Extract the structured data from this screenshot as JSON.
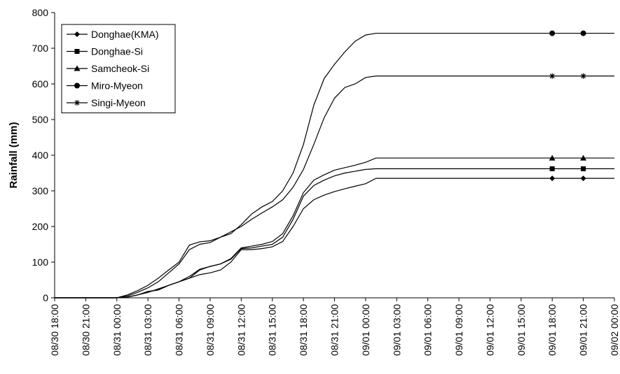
{
  "chart_data": {
    "type": "line",
    "y_label": "Rainfall (mm)",
    "x": [
      "08/30 18:00",
      "08/30 19:00",
      "08/30 20:00",
      "08/30 21:00",
      "08/30 22:00",
      "08/30 23:00",
      "08/31 00:00",
      "08/31 01:00",
      "08/31 02:00",
      "08/31 03:00",
      "08/31 04:00",
      "08/31 05:00",
      "08/31 06:00",
      "08/31 07:00",
      "08/31 08:00",
      "08/31 09:00",
      "08/31 10:00",
      "08/31 11:00",
      "08/31 12:00",
      "08/31 13:00",
      "08/31 14:00",
      "08/31 15:00",
      "08/31 16:00",
      "08/31 17:00",
      "08/31 18:00",
      "08/31 19:00",
      "08/31 20:00",
      "08/31 21:00",
      "08/31 22:00",
      "08/31 23:00",
      "09/01 00:00",
      "09/01 01:00",
      "09/01 02:00",
      "09/01 18:00",
      "09/01 21:00",
      "09/02 00:00"
    ],
    "series": [
      {
        "name": "Donghae(KMA)",
        "marker": "diamond",
        "color": "#000000",
        "values": [
          0,
          0,
          0,
          0,
          0,
          0,
          0,
          2,
          8,
          18,
          22,
          35,
          45,
          55,
          65,
          70,
          78,
          100,
          135,
          135,
          138,
          143,
          158,
          200,
          250,
          275,
          288,
          298,
          306,
          313,
          320,
          335,
          335,
          335,
          335,
          335
        ]
      },
      {
        "name": "Donghae-Si",
        "marker": "square",
        "color": "#000000",
        "values": [
          0,
          0,
          0,
          0,
          0,
          0,
          0,
          2,
          8,
          17,
          22,
          35,
          45,
          55,
          78,
          88,
          95,
          108,
          138,
          140,
          145,
          150,
          170,
          220,
          285,
          315,
          330,
          342,
          350,
          355,
          360,
          362,
          362,
          362,
          362,
          362
        ]
      },
      {
        "name": "Samcheok-Si",
        "marker": "triangle",
        "color": "#000000",
        "values": [
          0,
          0,
          0,
          0,
          0,
          0,
          0,
          2,
          8,
          15,
          25,
          35,
          45,
          60,
          80,
          88,
          95,
          110,
          140,
          145,
          150,
          158,
          180,
          230,
          295,
          330,
          345,
          358,
          365,
          372,
          380,
          392,
          392,
          392,
          392,
          392
        ]
      },
      {
        "name": "Miro-Myeon",
        "marker": "circle",
        "color": "#000000",
        "values": [
          0,
          0,
          0,
          0,
          0,
          0,
          0,
          8,
          20,
          35,
          55,
          78,
          100,
          148,
          157,
          160,
          170,
          180,
          205,
          235,
          255,
          270,
          300,
          350,
          430,
          540,
          615,
          655,
          690,
          720,
          737,
          742,
          742,
          742,
          742,
          742
        ]
      },
      {
        "name": "Singi-Myeon",
        "marker": "star",
        "color": "#000000",
        "values": [
          0,
          0,
          0,
          0,
          0,
          0,
          0,
          5,
          15,
          28,
          45,
          70,
          95,
          135,
          150,
          155,
          170,
          185,
          200,
          220,
          238,
          255,
          275,
          310,
          360,
          430,
          505,
          560,
          590,
          600,
          618,
          622,
          622,
          622,
          622,
          622
        ]
      }
    ],
    "xlim": [
      "08/30 18:00",
      "09/02 00:00"
    ],
    "xticks": [
      "08/30 18:00",
      "08/30 21:00",
      "08/31 00:00",
      "08/31 03:00",
      "08/31 06:00",
      "08/31 09:00",
      "08/31 12:00",
      "08/31 15:00",
      "08/31 18:00",
      "08/31 21:00",
      "09/01 00:00",
      "09/01 03:00",
      "09/01 06:00",
      "09/01 09:00",
      "09/01 12:00",
      "09/01 15:00",
      "09/01 18:00",
      "09/01 21:00",
      "09/02 00:00"
    ],
    "ylim": [
      0,
      800
    ],
    "yticks": [
      0,
      100,
      200,
      300,
      400,
      500,
      600,
      700,
      800
    ],
    "grid": false,
    "legend": "upper left"
  }
}
